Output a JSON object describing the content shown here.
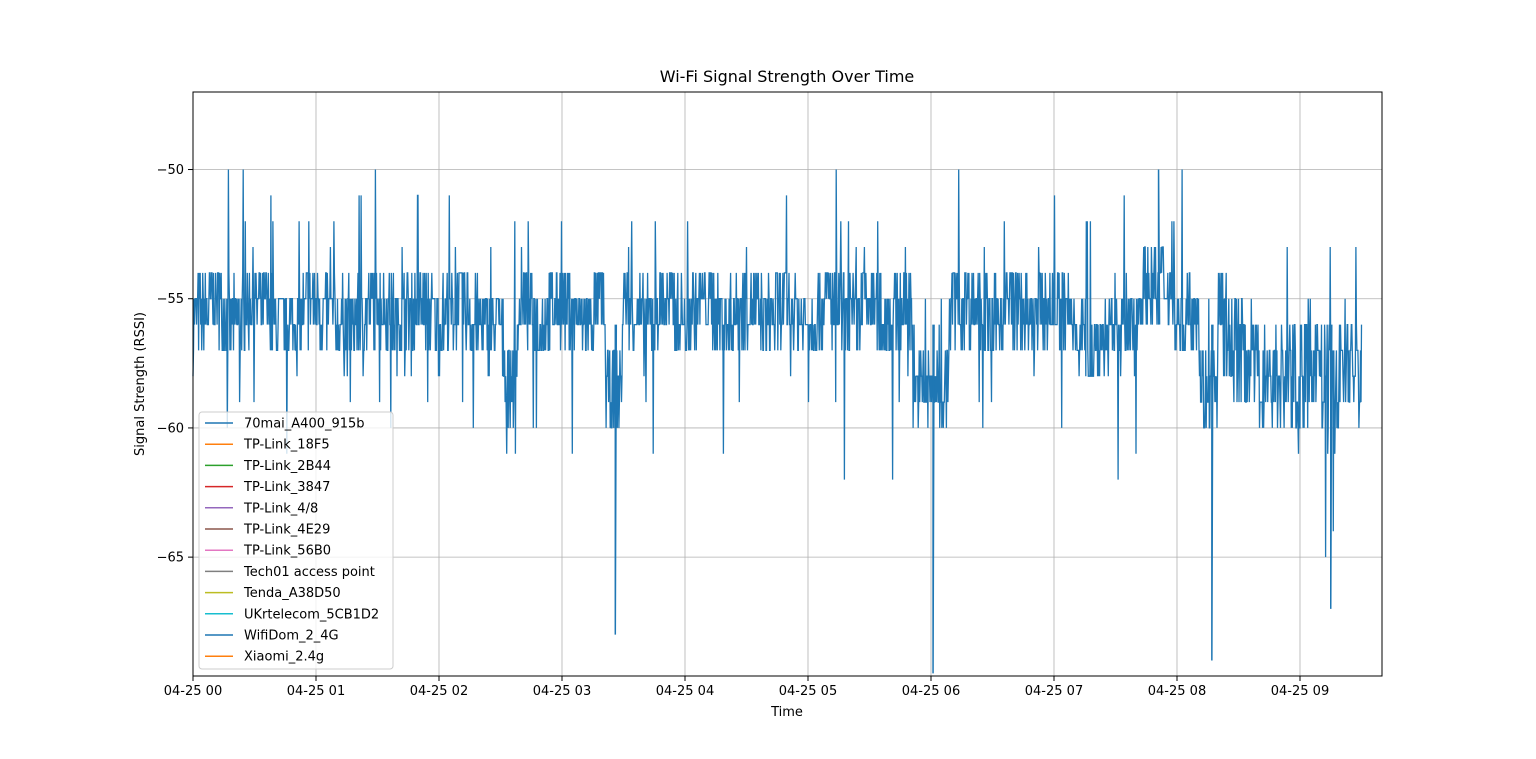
{
  "chart_data": {
    "type": "line",
    "title": "Wi-Fi Signal Strength Over Time",
    "xlabel": "Time",
    "ylabel": "Signal Strength (RSSI)",
    "x_ticks": [
      "04-25 00",
      "04-25 01",
      "04-25 02",
      "04-25 03",
      "04-25 04",
      "04-25 05",
      "04-25 06",
      "04-25 07",
      "04-25 08",
      "04-25 09"
    ],
    "y_ticks": [
      -50,
      -55,
      -60,
      -65
    ],
    "y_tick_labels": [
      "−50",
      "−55",
      "−60",
      "−65"
    ],
    "xlim": [
      "04-25 00:00",
      "04-25 09:40"
    ],
    "ylim": [
      -69.6,
      -47.0
    ],
    "grid": true,
    "legend_position": "lower-left",
    "series": [
      {
        "name": "70mai_A400_915b",
        "color": "#1f77b4",
        "values_note": "dense RSSI readings, mostly between -54 and -58 dBm",
        "points": [
          [
            "04-25 00:00",
            -56
          ],
          [
            "04-25 00:10",
            -55
          ],
          [
            "04-25 00:20",
            -56
          ],
          [
            "04-25 00:30",
            -55
          ],
          [
            "04-25 00:40",
            -56
          ],
          [
            "04-25 00:50",
            -56
          ],
          [
            "04-25 01:00",
            -55
          ],
          [
            "04-25 01:10",
            -56
          ],
          [
            "04-25 01:20",
            -56
          ],
          [
            "04-25 01:30",
            -55
          ],
          [
            "04-25 01:40",
            -56
          ],
          [
            "04-25 01:50",
            -55
          ],
          [
            "04-25 02:00",
            -56
          ],
          [
            "04-25 02:10",
            -55
          ],
          [
            "04-25 02:20",
            -56
          ],
          [
            "04-25 02:30",
            -56
          ],
          [
            "04-25 02:35",
            -59
          ],
          [
            "04-25 02:40",
            -55
          ],
          [
            "04-25 02:50",
            -56
          ],
          [
            "04-25 03:00",
            -55
          ],
          [
            "04-25 03:10",
            -56
          ],
          [
            "04-25 03:20",
            -55
          ],
          [
            "04-25 03:26",
            -68
          ],
          [
            "04-25 03:30",
            -55
          ],
          [
            "04-25 03:40",
            -56
          ],
          [
            "04-25 03:50",
            -55
          ],
          [
            "04-25 04:00",
            -56
          ],
          [
            "04-25 04:10",
            -55
          ],
          [
            "04-25 04:20",
            -56
          ],
          [
            "04-25 04:30",
            -55
          ],
          [
            "04-25 04:40",
            -56
          ],
          [
            "04-25 04:50",
            -55
          ],
          [
            "04-25 05:00",
            -56
          ],
          [
            "04-25 05:10",
            -55
          ],
          [
            "04-25 05:20",
            -56
          ],
          [
            "04-25 05:30",
            -55
          ],
          [
            "04-25 05:40",
            -56
          ],
          [
            "04-25 05:50",
            -55
          ],
          [
            "04-25 06:01",
            -69.5
          ],
          [
            "04-25 06:10",
            -55
          ],
          [
            "04-25 06:20",
            -55
          ],
          [
            "04-25 06:30",
            -56
          ],
          [
            "04-25 06:40",
            -55
          ],
          [
            "04-25 06:50",
            -56
          ],
          [
            "04-25 07:00",
            -55
          ],
          [
            "04-25 07:10",
            -56
          ],
          [
            "04-25 07:20",
            -57
          ],
          [
            "04-25 07:30",
            -56
          ],
          [
            "04-25 07:40",
            -56
          ],
          [
            "04-25 07:51",
            -50
          ],
          [
            "04-25 08:00",
            -56
          ],
          [
            "04-25 08:10",
            -55
          ],
          [
            "04-25 08:17",
            -69
          ],
          [
            "04-25 08:20",
            -56
          ],
          [
            "04-25 08:30",
            -57
          ],
          [
            "04-25 08:40",
            -58
          ],
          [
            "04-25 08:50",
            -58
          ],
          [
            "04-25 09:00",
            -58
          ],
          [
            "04-25 09:10",
            -57
          ],
          [
            "04-25 09:15",
            -67
          ],
          [
            "04-25 09:20",
            -57
          ],
          [
            "04-25 09:30",
            -58
          ]
        ]
      },
      {
        "name": "TP-Link_18F5",
        "color": "#ff7f0e",
        "points": []
      },
      {
        "name": "TP-Link_2B44",
        "color": "#2ca02c",
        "points": []
      },
      {
        "name": "TP-Link_3847",
        "color": "#d62728",
        "points": []
      },
      {
        "name": "TP-Link_4/8",
        "color": "#9467bd",
        "points": []
      },
      {
        "name": "TP-Link_4E29",
        "color": "#8c564b",
        "points": []
      },
      {
        "name": "TP-Link_56B0",
        "color": "#e377c2",
        "points": []
      },
      {
        "name": "Tech01 access point",
        "color": "#7f7f7f",
        "points": []
      },
      {
        "name": "Tenda_A38D50",
        "color": "#bcbd22",
        "points": []
      },
      {
        "name": "UKrtelecom_5CB1D2",
        "color": "#17becf",
        "points": []
      },
      {
        "name": "WifiDom_2_4G",
        "color": "#1f77b4",
        "points": []
      },
      {
        "name": "Xiaomi_2.4g",
        "color": "#ff7f0e",
        "points": []
      }
    ]
  }
}
